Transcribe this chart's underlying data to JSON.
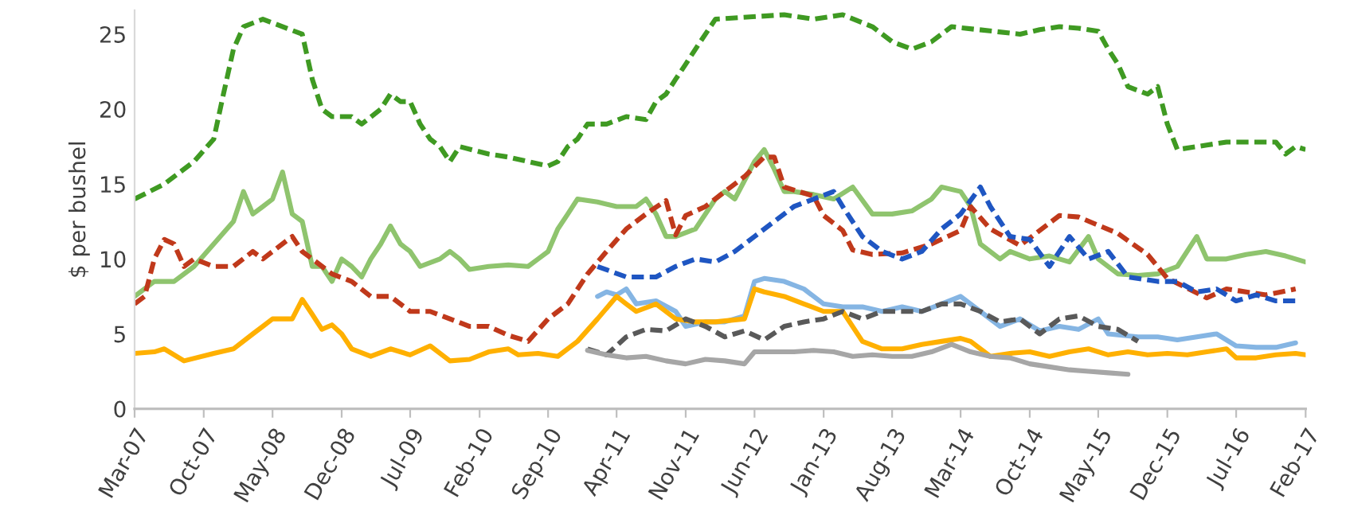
{
  "chart_data": {
    "type": "line",
    "ylabel": "$ per bushel",
    "ylim": [
      0,
      26.6
    ],
    "yticks": [
      0,
      5,
      10,
      15,
      20,
      25
    ],
    "xlim": [
      "2007-03",
      "2017-02"
    ],
    "xticks": [
      {
        "value": "2007-03",
        "label": "Mar-07"
      },
      {
        "value": "2007-10",
        "label": "Oct-07"
      },
      {
        "value": "2008-05",
        "label": "May-08"
      },
      {
        "value": "2008-12",
        "label": "Dec-08"
      },
      {
        "value": "2009-07",
        "label": "Jul-09"
      },
      {
        "value": "2010-02",
        "label": "Feb-10"
      },
      {
        "value": "2010-09",
        "label": "Sep-10"
      },
      {
        "value": "2011-04",
        "label": "Apr-11"
      },
      {
        "value": "2011-11",
        "label": "Nov-11"
      },
      {
        "value": "2012-06",
        "label": "Jun-12"
      },
      {
        "value": "2013-01",
        "label": "Jan-13"
      },
      {
        "value": "2013-08",
        "label": "Aug-13"
      },
      {
        "value": "2014-03",
        "label": "Mar-14"
      },
      {
        "value": "2014-10",
        "label": "Oct-14"
      },
      {
        "value": "2015-05",
        "label": "May-15"
      },
      {
        "value": "2015-12",
        "label": "Dec-15"
      },
      {
        "value": "2016-07",
        "label": "Jul-16"
      },
      {
        "value": "2017-02",
        "label": "Feb-17"
      }
    ],
    "grid": false,
    "series": [
      {
        "color": "#3f9a22",
        "line_style": "dashed",
        "x": [
          "2007-03",
          "2007-06",
          "2007-09",
          "2007-11",
          "2007-12",
          "2008-01",
          "2008-02",
          "2008-04",
          "2008-06",
          "2008-07",
          "2008-08",
          "2008-09",
          "2008-10",
          "2008-11",
          "2009-01",
          "2009-02",
          "2009-04",
          "2009-05",
          "2009-06",
          "2009-07",
          "2009-08",
          "2009-09",
          "2009-10",
          "2009-11",
          "2009-12",
          "2010-03",
          "2010-05",
          "2010-07",
          "2010-09",
          "2010-10",
          "2010-11",
          "2010-12",
          "2011-01",
          "2011-03",
          "2011-05",
          "2011-07",
          "2011-08",
          "2011-09",
          "2011-10",
          "2011-11",
          "2011-12",
          "2012-02",
          "2012-03",
          "2012-06",
          "2012-09",
          "2012-12",
          "2013-03",
          "2013-06",
          "2013-08",
          "2013-10",
          "2013-12",
          "2014-02",
          "2014-04",
          "2014-08",
          "2014-09",
          "2014-11",
          "2015-01",
          "2015-03",
          "2015-05",
          "2015-06",
          "2015-07",
          "2015-08",
          "2015-10",
          "2015-11",
          "2015-12",
          "2016-01",
          "2016-04",
          "2016-06",
          "2016-09",
          "2016-11",
          "2016-12",
          "2017-01",
          "2017-02"
        ],
        "values": [
          14,
          15,
          16.5,
          18,
          21,
          24,
          25.5,
          26,
          null,
          null,
          25,
          22,
          20,
          19.5,
          19.5,
          19,
          20,
          21,
          20.5,
          20.5,
          19,
          18,
          17.5,
          16.5,
          17.5,
          17,
          16.8,
          16.5,
          16.2,
          16.5,
          17.5,
          18,
          19,
          19,
          19.5,
          19.3,
          20.5,
          21,
          22,
          23,
          24,
          26,
          null,
          null,
          26.3,
          26,
          26.3,
          25.5,
          24.5,
          24,
          24.5,
          25.5,
          null,
          null,
          25,
          25.3,
          25.5,
          25.4,
          25.2,
          24,
          23,
          21.5,
          21,
          21.5,
          19,
          17.3,
          17.6,
          17.8,
          17.8,
          17.8,
          17,
          17.5,
          17.3
        ]
      },
      {
        "color": "#8fc46e",
        "line_style": "solid",
        "x": [
          "2007-03",
          "2007-05",
          "2007-07",
          "2007-09",
          "2007-11",
          "2008-01",
          "2008-02",
          "2008-03",
          "2008-04",
          "2008-05",
          "2008-06",
          "2008-07",
          "2008-08",
          "2008-09",
          "2008-10",
          "2008-11",
          "2008-12",
          "2009-01",
          "2009-02",
          "2009-03",
          "2009-04",
          "2009-05",
          "2009-06",
          "2009-07",
          "2009-08",
          "2009-10",
          "2009-11",
          "2009-12",
          "2010-01",
          "2010-03",
          "2010-05",
          "2010-07",
          "2010-08",
          "2010-09",
          "2010-10",
          "2010-11",
          "2010-12",
          "2011-02",
          "2011-04",
          "2011-06",
          "2011-07",
          "2011-08",
          "2011-09",
          "2011-10",
          "2011-12",
          "2012-02",
          "2012-03",
          "2012-04",
          "2012-06",
          "2012-07",
          "2012-08",
          "2012-09",
          "2012-10",
          "2012-12",
          "2013-02",
          "2013-04",
          "2013-06",
          "2013-08",
          "2013-10",
          "2013-12",
          "2014-01",
          "2014-03",
          "2014-04",
          "2014-05",
          "2014-07",
          "2014-08",
          "2014-10",
          "2014-12",
          "2015-02",
          "2015-04",
          "2015-05",
          "2015-07",
          "2015-09",
          "2015-11",
          "2016-01",
          "2016-03",
          "2016-04",
          "2016-06",
          "2016-08",
          "2016-10",
          "2016-12",
          "2017-02"
        ],
        "values": [
          7.5,
          8.5,
          8.5,
          9.5,
          11,
          12.5,
          14.5,
          13,
          13.5,
          14,
          15.8,
          13,
          12.5,
          9.5,
          9.5,
          8.5,
          10,
          9.5,
          8.8,
          10,
          11,
          12.2,
          11,
          10.5,
          9.5,
          10,
          10.5,
          10,
          9.3,
          9.5,
          9.6,
          9.5,
          10,
          10.5,
          12,
          13,
          14,
          13.8,
          13.5,
          13.5,
          14,
          13,
          11.5,
          11.5,
          12,
          14,
          14.5,
          14,
          16.5,
          17.3,
          16,
          14.5,
          14.5,
          14.3,
          14,
          14.8,
          13,
          13,
          13.2,
          14,
          14.8,
          14.5,
          13.5,
          11,
          10,
          10.5,
          10,
          10.2,
          9.8,
          11.5,
          10,
          9,
          8.9,
          9,
          9.5,
          11.5,
          10,
          10,
          10.3,
          10.5,
          10.2,
          9.8
        ]
      },
      {
        "color": "#c0391b",
        "line_style": "dashed",
        "x": [
          "2007-03",
          "2007-04",
          "2007-05",
          "2007-06",
          "2007-07",
          "2007-08",
          "2007-09",
          "2007-11",
          "2008-01",
          "2008-03",
          "2008-04",
          "2008-05",
          "2008-07",
          "2008-08",
          "2008-09",
          "2008-11",
          "2009-01",
          "2009-03",
          "2009-05",
          "2009-07",
          "2009-09",
          "2009-11",
          "2010-01",
          "2010-03",
          "2010-05",
          "2010-07",
          "2010-09",
          "2010-11",
          "2011-01",
          "2011-03",
          "2011-05",
          "2011-07",
          "2011-09",
          "2011-10",
          "2011-11",
          "2012-01",
          "2012-03",
          "2012-05",
          "2012-07",
          "2012-08",
          "2012-09",
          "2012-12",
          "2013-01",
          "2013-03",
          "2013-04",
          "2013-06",
          "2013-09",
          "2013-12",
          "2014-03",
          "2014-04",
          "2014-06",
          "2014-09",
          "2015-01",
          "2015-03",
          "2015-07",
          "2015-10",
          "2015-12",
          "2016-04",
          "2016-06",
          "2016-10",
          "2017-01"
        ],
        "values": [
          7,
          7.5,
          10,
          11.3,
          11,
          9.5,
          10,
          9.5,
          9.5,
          10.5,
          10,
          10.5,
          11.5,
          10.5,
          10,
          9,
          8.5,
          7.5,
          7.5,
          6.5,
          6.5,
          6,
          5.5,
          5.5,
          4.9,
          4.5,
          6,
          7,
          9,
          10.5,
          12,
          13,
          13.9,
          11.6,
          12.9,
          13.5,
          14.5,
          15.5,
          16.8,
          16.8,
          14.8,
          14.2,
          12.9,
          11.9,
          10.6,
          10.3,
          10.4,
          11,
          11.9,
          13.5,
          12,
          10.9,
          12.9,
          12.8,
          11.7,
          10.3,
          8.7,
          7.4,
          8,
          7.6,
          8
        ]
      },
      {
        "color": "#1f56c2",
        "line_style": "dashed",
        "x": [
          "2011-02",
          "2011-05",
          "2011-08",
          "2011-10",
          "2011-12",
          "2012-02",
          "2012-04",
          "2012-06",
          "2012-08",
          "2012-10",
          "2012-12",
          "2013-02",
          "2013-03",
          "2013-05",
          "2013-07",
          "2013-09",
          "2013-11",
          "2014-01",
          "2014-03",
          "2014-05",
          "2014-06",
          "2014-08",
          "2014-10",
          "2014-12",
          "2015-02",
          "2015-04",
          "2015-06",
          "2015-08",
          "2015-11",
          "2016-01",
          "2016-03",
          "2016-05",
          "2016-07",
          "2016-09",
          "2016-11",
          "2017-01"
        ],
        "values": [
          9.5,
          8.8,
          8.8,
          9.5,
          10,
          9.8,
          10.5,
          11.5,
          12.5,
          13.5,
          14,
          14.5,
          13.5,
          11.5,
          10.5,
          10,
          10.5,
          12,
          13,
          14.8,
          13.5,
          11.5,
          11.3,
          9.5,
          11.5,
          10,
          10.5,
          8.8,
          8.5,
          8.5,
          7.8,
          8,
          7.2,
          7.6,
          7.2,
          7.2
        ]
      },
      {
        "color": "#85b5e3",
        "line_style": "solid",
        "x": [
          "2011-02",
          "2011-03",
          "2011-04",
          "2011-05",
          "2011-06",
          "2011-08",
          "2011-10",
          "2011-11",
          "2012-01",
          "2012-03",
          "2012-05",
          "2012-06",
          "2012-07",
          "2012-09",
          "2012-11",
          "2013-01",
          "2013-03",
          "2013-05",
          "2013-07",
          "2013-09",
          "2013-11",
          "2014-01",
          "2014-03",
          "2014-05",
          "2014-07",
          "2014-09",
          "2014-11",
          "2015-01",
          "2015-03",
          "2015-05",
          "2015-06",
          "2015-09",
          "2015-11",
          "2016-01",
          "2016-03",
          "2016-05",
          "2016-07",
          "2016-09",
          "2016-11",
          "2017-01"
        ],
        "values": [
          7.5,
          7.8,
          7.6,
          8,
          7,
          7.2,
          6.5,
          5.5,
          5.8,
          5.8,
          6.2,
          8.5,
          8.7,
          8.5,
          8,
          7,
          6.8,
          6.8,
          6.5,
          6.8,
          6.5,
          7,
          7.5,
          6.5,
          5.5,
          6,
          5.2,
          5.5,
          5.3,
          6,
          5,
          4.8,
          4.8,
          4.6,
          4.8,
          5,
          4.2,
          4.1,
          4.1,
          4.4
        ]
      },
      {
        "color": "#ffb000",
        "line_style": "solid",
        "x": [
          "2007-03",
          "2007-05",
          "2007-06",
          "2007-08",
          "2007-11",
          "2008-01",
          "2008-03",
          "2008-04",
          "2008-05",
          "2008-07",
          "2008-08",
          "2008-09",
          "2008-10",
          "2008-11",
          "2008-12",
          "2009-01",
          "2009-03",
          "2009-05",
          "2009-07",
          "2009-09",
          "2009-11",
          "2010-01",
          "2010-03",
          "2010-05",
          "2010-06",
          "2010-08",
          "2010-10",
          "2010-12",
          "2011-02",
          "2011-04",
          "2011-05",
          "2011-06",
          "2011-08",
          "2011-10",
          "2011-12",
          "2012-02",
          "2012-05",
          "2012-06",
          "2012-07",
          "2012-09",
          "2012-11",
          "2013-01",
          "2013-03",
          "2013-05",
          "2013-07",
          "2013-09",
          "2013-11",
          "2014-01",
          "2014-03",
          "2014-04",
          "2014-06",
          "2014-08",
          "2014-10",
          "2014-12",
          "2015-02",
          "2015-04",
          "2015-06",
          "2015-08",
          "2015-10",
          "2015-12",
          "2016-02",
          "2016-04",
          "2016-06",
          "2016-07",
          "2016-09",
          "2016-11",
          "2017-01",
          "2017-02"
        ],
        "values": [
          3.7,
          3.8,
          4,
          3.2,
          3.7,
          4,
          5,
          5.5,
          6,
          6,
          7.3,
          6.3,
          5.3,
          5.6,
          5,
          4,
          3.5,
          4,
          3.6,
          4.2,
          3.2,
          3.3,
          3.8,
          4,
          3.6,
          3.7,
          3.5,
          4.5,
          6,
          7.5,
          7,
          6.5,
          7,
          6,
          5.8,
          5.8,
          6,
          8,
          7.8,
          7.5,
          7,
          6.5,
          6.5,
          4.5,
          4,
          4,
          4.3,
          4.5,
          4.7,
          4.5,
          3.5,
          3.7,
          3.8,
          3.5,
          3.8,
          4,
          3.6,
          3.8,
          3.6,
          3.7,
          3.6,
          3.8,
          4,
          3.4,
          3.4,
          3.6,
          3.7,
          3.6
        ]
      },
      {
        "color": "#595959",
        "line_style": "dashed",
        "x": [
          "2011-01",
          "2011-03",
          "2011-05",
          "2011-07",
          "2011-09",
          "2011-11",
          "2012-01",
          "2012-03",
          "2012-05",
          "2012-07",
          "2012-09",
          "2012-11",
          "2013-01",
          "2013-03",
          "2013-05",
          "2013-07",
          "2013-09",
          "2013-11",
          "2014-01",
          "2014-03",
          "2014-05",
          "2014-07",
          "2014-09",
          "2014-11",
          "2015-01",
          "2015-03",
          "2015-05",
          "2015-07",
          "2015-09"
        ],
        "values": [
          4,
          3.6,
          4.8,
          5.3,
          5.2,
          6,
          5.5,
          4.8,
          5.2,
          4.6,
          5.5,
          5.8,
          6,
          6.5,
          6,
          6.5,
          6.5,
          6.5,
          7,
          7,
          6.5,
          5.8,
          6,
          5,
          6,
          6.2,
          5.5,
          5.3,
          4.5
        ]
      },
      {
        "color": "#a6a6a6",
        "line_style": "solid",
        "x": [
          "2011-01",
          "2011-03",
          "2011-05",
          "2011-07",
          "2011-09",
          "2011-11",
          "2012-01",
          "2012-03",
          "2012-05",
          "2012-06",
          "2012-08",
          "2012-10",
          "2012-12",
          "2013-02",
          "2013-04",
          "2013-06",
          "2013-08",
          "2013-10",
          "2013-12",
          "2014-02",
          "2014-04",
          "2014-06",
          "2014-08",
          "2014-10",
          "2014-12",
          "2015-02",
          "2015-04",
          "2015-06",
          "2015-08"
        ],
        "values": [
          3.9,
          3.6,
          3.4,
          3.5,
          3.2,
          3,
          3.3,
          3.2,
          3,
          3.8,
          3.8,
          3.8,
          3.9,
          3.8,
          3.5,
          3.6,
          3.5,
          3.5,
          3.8,
          4.3,
          3.8,
          3.5,
          3.4,
          3,
          2.8,
          2.6,
          2.5,
          2.4,
          2.3
        ]
      }
    ]
  }
}
